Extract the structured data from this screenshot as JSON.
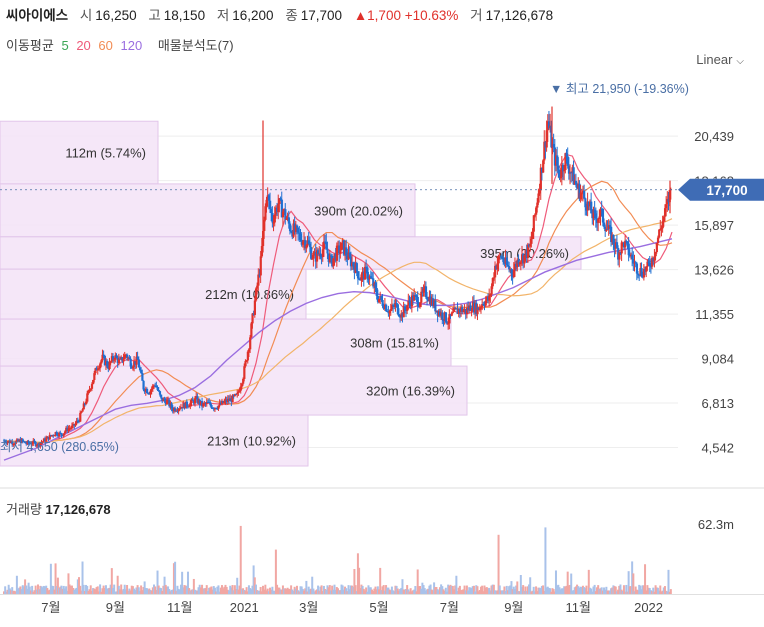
{
  "header": {
    "name": "씨아이에스",
    "open_label": "시",
    "open": "16,250",
    "high_label": "고",
    "high": "18,150",
    "low_label": "저",
    "low": "16,200",
    "close_label": "종",
    "close": "17,700",
    "change": "▲1,700",
    "change_pct": "+10.63%",
    "volume_label": "거",
    "volume": "17,126,678"
  },
  "indicators": {
    "ma_label": "이동평균",
    "ma5": "5",
    "ma20": "20",
    "ma60": "60",
    "ma120": "120",
    "vp_label": "매물분석도(7)"
  },
  "scale_selector": "Linear",
  "colors": {
    "up": "#e0312b",
    "down": "#1f6fd1",
    "ma5": "#ef5b7a",
    "ma20": "#f28c54",
    "ma60": "#f2b46a",
    "ma120": "#9a6ee0",
    "vp_band": "#f3e3f7",
    "accent": "#4a6fa5"
  },
  "chart_data": {
    "type": "candlestick",
    "title": "",
    "y_axis_ticks": [
      "20,439",
      "18,168",
      "15,897",
      "13,626",
      "11,355",
      "9,084",
      "6,813",
      "4,542"
    ],
    "y_tick_values": [
      20439,
      18168,
      15897,
      13626,
      11355,
      9084,
      6813,
      4542
    ],
    "ylim": [
      3600,
      23100
    ],
    "x_axis_ticks": [
      "7월",
      "9월",
      "11월",
      "2021",
      "3월",
      "5월",
      "7월",
      "9월",
      "11월",
      "2022"
    ],
    "x_tick_index": [
      8,
      19,
      30,
      41,
      52,
      64,
      76,
      87,
      98,
      110
    ],
    "current_price_label": "17,700",
    "current_price": 17700,
    "high_annotation": "▼ 최고 21,950 (-19.36%)",
    "low_annotation": "최저 4,650 (280.65%)",
    "volume_profile": [
      {
        "label": "112m (5.74%)",
        "price_low": 18000,
        "price_high": 21200,
        "share": 5.74
      },
      {
        "label": "390m (20.02%)",
        "price_low": 15300,
        "price_high": 18000,
        "share": 20.02
      },
      {
        "label": "395m (20.26%)",
        "price_low": 13650,
        "price_high": 15300,
        "share": 20.26
      },
      {
        "label": "212m (10.86%)",
        "price_low": 11100,
        "price_high": 13650,
        "share": 10.86
      },
      {
        "label": "308m (15.81%)",
        "price_low": 8700,
        "price_high": 11100,
        "share": 15.81
      },
      {
        "label": "320m (16.39%)",
        "price_low": 6200,
        "price_high": 8700,
        "share": 16.39
      },
      {
        "label": "213m (10.92%)",
        "price_low": 3600,
        "price_high": 6200,
        "share": 10.92
      }
    ],
    "price_path": [
      4900,
      4850,
      4800,
      4900,
      4750,
      4800,
      4700,
      4900,
      5100,
      5300,
      5200,
      5500,
      5600,
      6000,
      6800,
      7700,
      8600,
      9100,
      8700,
      9200,
      8900,
      9300,
      8800,
      9000,
      7600,
      7400,
      7800,
      7000,
      6900,
      6500,
      6600,
      6700,
      6800,
      7000,
      6700,
      6800,
      6600,
      6700,
      6900,
      7000,
      7200,
      8200,
      9800,
      12000,
      14000,
      17500,
      16200,
      17000,
      16500,
      15800,
      15500,
      15200,
      15000,
      14200,
      14500,
      14800,
      14000,
      14500,
      14800,
      14200,
      13800,
      13200,
      13500,
      13000,
      12200,
      11900,
      11500,
      11800,
      11300,
      11800,
      12200,
      12000,
      12500,
      12100,
      11600,
      11300,
      11000,
      11400,
      11600,
      11500,
      11800,
      11600,
      12000,
      12100,
      13800,
      14300,
      13800,
      13500,
      14200,
      14300,
      14800,
      16800,
      19000,
      21200,
      19500,
      18500,
      19300,
      18600,
      17800,
      17400,
      16800,
      16200,
      16500,
      15800,
      15200,
      14500,
      15000,
      14400,
      13800,
      13500,
      13700,
      14300,
      15500,
      16500,
      17700
    ],
    "ma120_path": [
      3900,
      4200,
      4500,
      4900,
      5300,
      5700,
      6100,
      6500,
      6700,
      6800,
      6950,
      7200,
      7600,
      8200,
      9000,
      9700,
      10400,
      11000,
      11500,
      11900,
      12200,
      12400,
      12500,
      12450,
      12300,
      12100,
      11900,
      11800,
      11800,
      11900,
      12100,
      12400,
      12700,
      13100,
      13500,
      13800,
      14100,
      14300,
      14500,
      14650,
      14800,
      15000,
      15200
    ],
    "volume_axis_tick": "62.3m",
    "volume_label": "거래량",
    "volume_value": "17,126,678"
  }
}
